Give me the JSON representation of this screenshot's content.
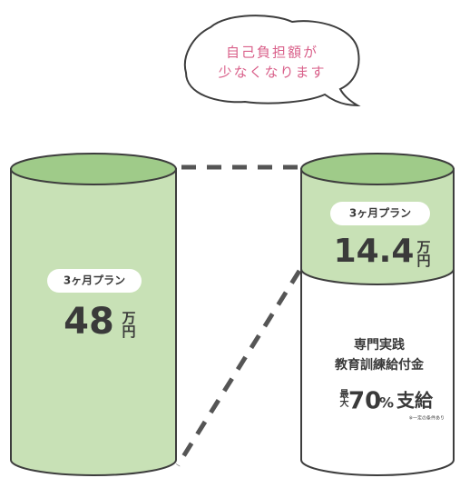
{
  "bubble": {
    "lines": [
      "自己負担額が",
      "少なくなります"
    ]
  },
  "left": {
    "badge": "3ヶ月プラン",
    "amount": "48",
    "unit": "万円"
  },
  "right": {
    "badge": "3ヶ月プラン",
    "amount": "14.4",
    "unit": "万円",
    "subsidy": {
      "lines": [
        "専門実践",
        "教育訓練給付金"
      ],
      "prefix": "最大",
      "rate": "70",
      "percent": "%",
      "action": "支給",
      "note": "※一定の条件あり"
    }
  }
}
